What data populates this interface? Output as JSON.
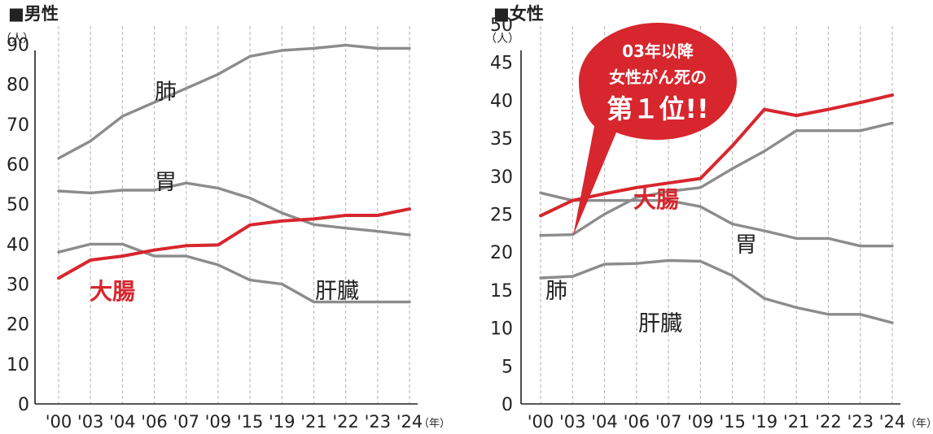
{
  "chart_data": [
    {
      "type": "line",
      "title": "■男性",
      "ylabel": "（人）",
      "xlabel": "（年）",
      "categories": [
        "'00",
        "'03",
        "'04",
        "'06",
        "'07",
        "'09",
        "'15",
        "'19",
        "'21",
        "'22",
        "'23",
        "'24"
      ],
      "ylim": [
        0,
        95
      ],
      "yticks": [
        0,
        10,
        20,
        30,
        40,
        50,
        60,
        70,
        80,
        90
      ],
      "grid": true,
      "series": [
        {
          "name": "肺",
          "color": "#8c8c8c",
          "values": [
            61.5,
            65.8,
            72,
            75.5,
            79,
            82.5,
            87,
            88.5,
            89,
            89.8,
            89,
            89
          ]
        },
        {
          "name": "胃",
          "color": "#8c8c8c",
          "values": [
            53.3,
            52.8,
            53.5,
            53.5,
            55.3,
            54,
            51.5,
            47.8,
            44.9,
            44,
            43.2,
            42.3
          ]
        },
        {
          "name": "肝臓",
          "color": "#8c8c8c",
          "values": [
            38,
            40,
            40,
            37,
            37,
            34.8,
            31,
            30,
            25.5,
            25.5,
            25.5,
            25.5
          ]
        },
        {
          "name": "大腸",
          "color": "#d7262e",
          "values": [
            31.5,
            36,
            37,
            38.5,
            39.6,
            39.8,
            44.8,
            45.8,
            46.3,
            47.2,
            47.2,
            48.8
          ]
        }
      ],
      "labels": [
        "肺",
        "胃",
        "肝臓",
        "大腸"
      ]
    },
    {
      "type": "line",
      "title": "■女性",
      "ylabel": "（人）",
      "xlabel": "（年）",
      "categories": [
        "'00",
        "'03",
        "'04",
        "'06",
        "'07",
        "'09",
        "'15",
        "'19",
        "'21",
        "'22",
        "'23",
        "'24"
      ],
      "ylim": [
        0,
        50
      ],
      "yticks": [
        0,
        5,
        10,
        15,
        20,
        25,
        30,
        35,
        40,
        45,
        50
      ],
      "grid": true,
      "series": [
        {
          "name": "肺",
          "color": "#8c8c8c",
          "values": [
            22.2,
            22.3,
            25,
            27.2,
            28,
            28.5,
            31,
            33.3,
            36,
            36,
            36,
            37
          ]
        },
        {
          "name": "胃",
          "color": "#8c8c8c",
          "values": [
            27.8,
            26.8,
            26.8,
            26.8,
            26.8,
            26,
            23.7,
            22.8,
            21.8,
            21.8,
            20.8,
            20.8
          ]
        },
        {
          "name": "肝臓",
          "color": "#8c8c8c",
          "values": [
            16.6,
            16.8,
            18.4,
            18.5,
            18.9,
            18.8,
            16.9,
            13.9,
            12.7,
            11.8,
            11.8,
            10.7
          ]
        },
        {
          "name": "大腸",
          "color": "#d7262e",
          "values": [
            24.8,
            26.8,
            27.7,
            28.5,
            29.1,
            29.7,
            34,
            38.8,
            38,
            38.8,
            39.7,
            40.7
          ]
        }
      ],
      "labels": [
        "大腸",
        "胃",
        "肺",
        "肝臓"
      ],
      "callout": {
        "lines": [
          "03年以降",
          "女性がん死の",
          "第１位!!"
        ],
        "color": "#d7262e"
      }
    }
  ]
}
